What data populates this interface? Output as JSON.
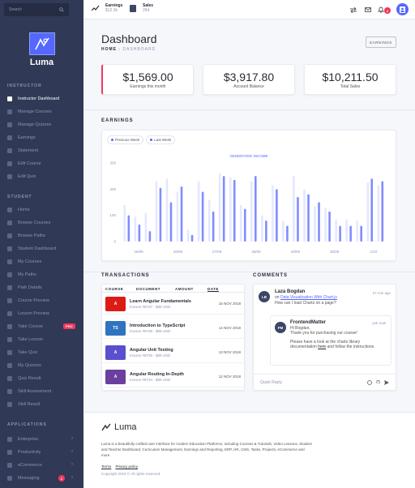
{
  "sidebar": {
    "search_placeholder": "Search",
    "brand": "Luma",
    "sections": [
      {
        "title": "INSTRUCTOR",
        "items": [
          {
            "label": "Instructor Dashboard",
            "icon": "dashboard-icon",
            "active": true
          },
          {
            "label": "Manage Courses",
            "icon": "courses-icon"
          },
          {
            "label": "Manage Quizzes",
            "icon": "quizzes-icon"
          },
          {
            "label": "Earnings",
            "icon": "earnings-icon"
          },
          {
            "label": "Statement",
            "icon": "statement-icon"
          },
          {
            "label": "Edit Course",
            "icon": "edit-icon"
          },
          {
            "label": "Edit Quiz",
            "icon": "edit-quiz-icon"
          }
        ]
      },
      {
        "title": "STUDENT",
        "items": [
          {
            "label": "Home",
            "icon": "home-icon"
          },
          {
            "label": "Browse Courses",
            "icon": "browse-icon"
          },
          {
            "label": "Browse Paths",
            "icon": "paths-icon"
          },
          {
            "label": "Student Dashboard",
            "icon": "dashboard-icon"
          },
          {
            "label": "My Courses",
            "icon": "my-courses-icon"
          },
          {
            "label": "My Paths",
            "icon": "my-paths-icon"
          },
          {
            "label": "Path Details",
            "icon": "details-icon"
          },
          {
            "label": "Course Preview",
            "icon": "preview-icon"
          },
          {
            "label": "Lesson Preview",
            "icon": "lesson-icon"
          },
          {
            "label": "Take Course",
            "icon": "take-course-icon",
            "badge": "PRO"
          },
          {
            "label": "Take Lesson",
            "icon": "take-lesson-icon"
          },
          {
            "label": "Take Quiz",
            "icon": "take-quiz-icon"
          },
          {
            "label": "My Quizzes",
            "icon": "my-quizzes-icon"
          },
          {
            "label": "Quiz Result",
            "icon": "result-icon"
          },
          {
            "label": "Skill Assessment",
            "icon": "assessment-icon"
          },
          {
            "label": "Skill Result",
            "icon": "skill-result-icon"
          }
        ]
      },
      {
        "title": "APPLICATIONS",
        "items": [
          {
            "label": "Enterprise",
            "icon": "enterprise-icon",
            "chevron": true
          },
          {
            "label": "Productivity",
            "icon": "productivity-icon",
            "chevron": true
          },
          {
            "label": "eCommerce",
            "icon": "ecommerce-icon",
            "chevron": true
          },
          {
            "label": "Messaging",
            "icon": "messaging-icon",
            "chevron": true,
            "count": "2"
          }
        ]
      }
    ]
  },
  "topbar": {
    "earnings_label": "Earnings",
    "earnings_value": "$12.3k",
    "sales_label": "Sales",
    "sales_value": "264",
    "notif_count": "2"
  },
  "page": {
    "title": "Dashboard",
    "crumb_home": "HOME",
    "crumb_current": "DASHBOARD",
    "earnings_button": "EARNINGS"
  },
  "kpis": [
    {
      "value": "$1,569.00",
      "caption": "Earnings this month"
    },
    {
      "value": "$3,917.80",
      "caption": "Account Balance"
    },
    {
      "value": "$10,211.50",
      "caption": "Total Sales"
    }
  ],
  "earnings_section": "EARNINGS",
  "legend": {
    "previous": "Previous Week",
    "last": "Last Week"
  },
  "colors": {
    "accent": "#5567ff",
    "faint": "#e4e8ff",
    "sidebar": "#303956",
    "danger": "#f5365c"
  },
  "chart_data": {
    "type": "bar",
    "title": "GENERATED INCOME",
    "ylim": [
      0,
      300
    ],
    "yticks": [
      "300",
      "200",
      "100",
      "0"
    ],
    "x_ticks": [
      "25/09",
      "26/09",
      "27/09",
      "28/09",
      "29/09",
      "30/09",
      "1/10"
    ],
    "series": [
      {
        "name": "Previous Week",
        "values": [
          100,
          65,
          40,
          205,
          150,
          210,
          25,
          190,
          115,
          250,
          235,
          125,
          250,
          80,
          200,
          60,
          170,
          180,
          150,
          115,
          60,
          60,
          60,
          240,
          230
        ]
      },
      {
        "name": "Last Week",
        "values": [
          140,
          95,
          110,
          230,
          240,
          190,
          45,
          230,
          160,
          260,
          245,
          140,
          230,
          100,
          215,
          80,
          250,
          200,
          135,
          130,
          85,
          85,
          80,
          225,
          215
        ]
      }
    ]
  },
  "transactions": {
    "title": "TRANSACTIONS",
    "headers": [
      "COURSE",
      "DOCUMENT",
      "AMOUNT",
      "DATE"
    ],
    "rows": [
      {
        "title": "Learn Angular Fundamentals",
        "sub": "Invoice #8737 - $89 USD",
        "date": "15 NOV 2018",
        "thumb": "A",
        "color": "#dd1b16"
      },
      {
        "title": "Introduction to TypeScript",
        "sub": "Invoice #8736 - $89 USD",
        "date": "14 NOV 2018",
        "thumb": "TS",
        "color": "#2f74c0"
      },
      {
        "title": "Angular Unit Testing",
        "sub": "Invoice #8735 - $89 USD",
        "date": "13 NOV 2018",
        "thumb": "A",
        "color": "#5a4fcf"
      },
      {
        "title": "Angular Routing In-Depth",
        "sub": "Invoice #8734 - $89 USD",
        "date": "12 NOV 2018",
        "thumb": "A",
        "color": "#6b3fa0"
      }
    ]
  },
  "comments": {
    "title": "COMMENTS",
    "c1": {
      "initials": "LB",
      "name": "Laza Bogdan",
      "on": "on",
      "link": "Data Visualization With Chart.js",
      "text": "How can I load Charts on a page?",
      "time": "27 min ago"
    },
    "c2": {
      "initials": "FM",
      "name": "FrontendMatter",
      "time": "just now",
      "line1": "Hi Bogdan,",
      "line2": "Thank you for purchasing our course!",
      "line3a": "Please have a look at the charts library",
      "line3b": "documentation",
      "link": "here",
      "line3c": "and follow the instructions."
    },
    "placeholder": "Quick Reply"
  },
  "footer": {
    "brand": "Luma",
    "desc": "Luma is a beautifully crafted user interface for modern Education Platforms, including Courses & Tutorials, Video Lessons, Student and Teacher Dashboard, Curriculum Management, Earnings and Reporting, ERP, HR, CMS, Tasks, Projects, eCommerce and more.",
    "terms": "Terms",
    "privacy": "Privacy policy",
    "copy": "Copyright 2019 © All rights reserved."
  }
}
